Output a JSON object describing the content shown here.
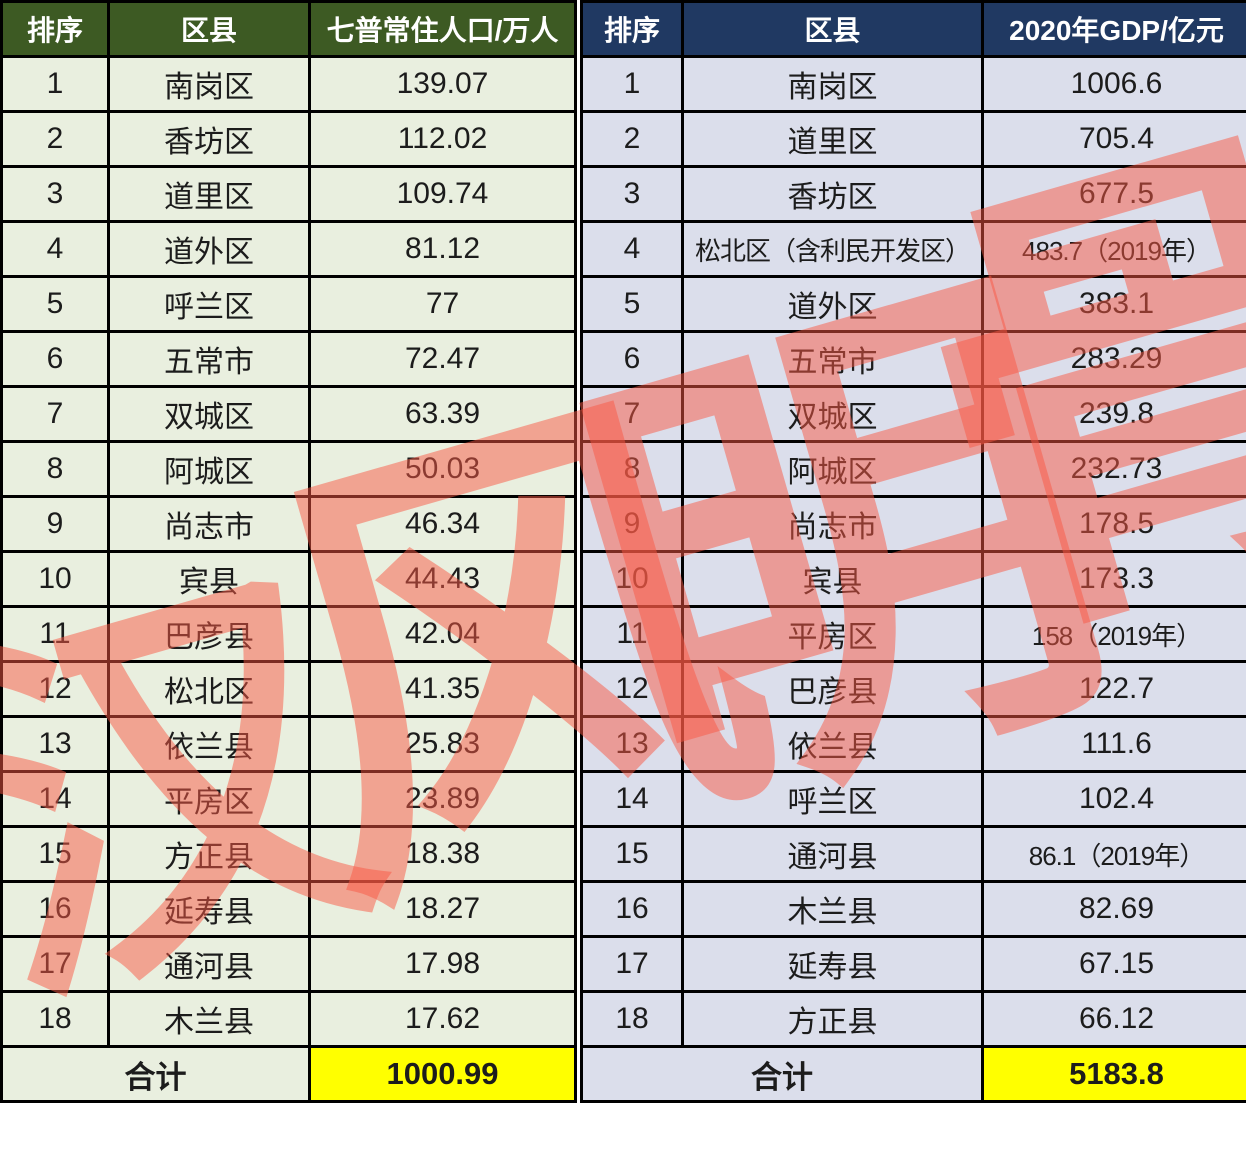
{
  "population_table": {
    "headers": [
      "排序",
      "区县",
      "七普常住人口/万人"
    ],
    "rows": [
      {
        "rank": "1",
        "district": "南岗区",
        "value": "139.07"
      },
      {
        "rank": "2",
        "district": "香坊区",
        "value": "112.02"
      },
      {
        "rank": "3",
        "district": "道里区",
        "value": "109.74"
      },
      {
        "rank": "4",
        "district": "道外区",
        "value": "81.12"
      },
      {
        "rank": "5",
        "district": "呼兰区",
        "value": "77"
      },
      {
        "rank": "6",
        "district": "五常市",
        "value": "72.47"
      },
      {
        "rank": "7",
        "district": "双城区",
        "value": "63.39"
      },
      {
        "rank": "8",
        "district": "阿城区",
        "value": "50.03"
      },
      {
        "rank": "9",
        "district": "尚志市",
        "value": "46.34"
      },
      {
        "rank": "10",
        "district": "宾县",
        "value": "44.43"
      },
      {
        "rank": "11",
        "district": "巴彦县",
        "value": "42.04"
      },
      {
        "rank": "12",
        "district": "松北区",
        "value": "41.35"
      },
      {
        "rank": "13",
        "district": "依兰县",
        "value": "25.83"
      },
      {
        "rank": "14",
        "district": "平房区",
        "value": "23.89"
      },
      {
        "rank": "15",
        "district": "方正县",
        "value": "18.38"
      },
      {
        "rank": "16",
        "district": "延寿县",
        "value": "18.27"
      },
      {
        "rank": "17",
        "district": "通河县",
        "value": "17.98"
      },
      {
        "rank": "18",
        "district": "木兰县",
        "value": "17.62"
      }
    ],
    "total_label": "合计",
    "total_value": "1000.99"
  },
  "gdp_table": {
    "headers": [
      "排序",
      "区县",
      "2020年GDP/亿元"
    ],
    "rows": [
      {
        "rank": "1",
        "district": "南岗区",
        "value": "1006.6"
      },
      {
        "rank": "2",
        "district": "道里区",
        "value": "705.4"
      },
      {
        "rank": "3",
        "district": "香坊区",
        "value": "677.5"
      },
      {
        "rank": "4",
        "district": "松北区（含利民开发区）",
        "value": "483.7（2019年）"
      },
      {
        "rank": "5",
        "district": "道外区",
        "value": "383.1"
      },
      {
        "rank": "6",
        "district": "五常市",
        "value": "283.29"
      },
      {
        "rank": "7",
        "district": "双城区",
        "value": "239.8"
      },
      {
        "rank": "8",
        "district": "阿城区",
        "value": "232.73"
      },
      {
        "rank": "9",
        "district": "尚志市",
        "value": "178.5"
      },
      {
        "rank": "10",
        "district": "宾县",
        "value": "173.3"
      },
      {
        "rank": "11",
        "district": "平房区",
        "value": "158（2019年）"
      },
      {
        "rank": "12",
        "district": "巴彦县",
        "value": "122.7"
      },
      {
        "rank": "13",
        "district": "依兰县",
        "value": "111.6"
      },
      {
        "rank": "14",
        "district": "呼兰区",
        "value": "102.4"
      },
      {
        "rank": "15",
        "district": "通河县",
        "value": "86.1（2019年）"
      },
      {
        "rank": "16",
        "district": "木兰县",
        "value": "82.69"
      },
      {
        "rank": "17",
        "district": "延寿县",
        "value": "67.15"
      },
      {
        "rank": "18",
        "district": "方正县",
        "value": "66.12"
      }
    ],
    "total_label": "合计",
    "total_value": "5183.8"
  },
  "watermark": {
    "characters": [
      "汉",
      "风",
      "明",
      "骨"
    ],
    "color": "#fa5844"
  },
  "colors": {
    "population_header_bg": "#3d5a23",
    "population_row_bg": "#e9efdf",
    "gdp_header_bg": "#203962",
    "gdp_row_bg": "#dbdeeb",
    "total_value_bg": "#ffff00",
    "border": "#000000",
    "header_text": "#ffffff",
    "cell_text": "#1c1c1c"
  }
}
